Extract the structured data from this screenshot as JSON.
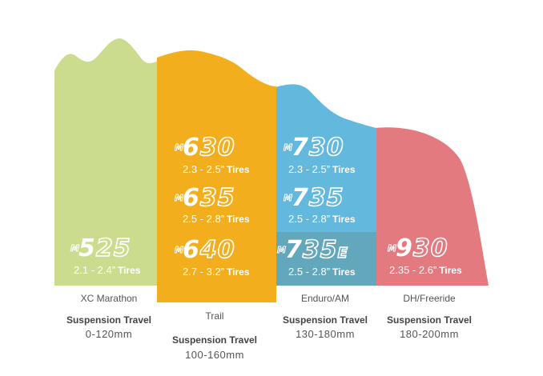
{
  "colors": {
    "xc": "#cbdc8e",
    "trail": "#f2ae1c",
    "enduro": "#62b8dd",
    "enduro_dark": "#63a7bc",
    "dh": "#e27a80"
  },
  "categories": [
    {
      "name": "XC Marathon",
      "travel_label": "Suspension Travel",
      "travel_value": "0-120mm",
      "models": [
        {
          "prefix": "M",
          "first": "5",
          "rest": "25",
          "suffix": "",
          "size": "2.1 - 2.4”",
          "tires": "Tires"
        }
      ]
    },
    {
      "name": "Trail",
      "travel_label": "Suspension Travel",
      "travel_value": "100-160mm",
      "models": [
        {
          "prefix": "M",
          "first": "6",
          "rest": "30",
          "suffix": "",
          "size": "2.3 - 2.5”",
          "tires": "Tires"
        },
        {
          "prefix": "M",
          "first": "6",
          "rest": "35",
          "suffix": "",
          "size": "2.5 - 2.8”",
          "tires": "Tires"
        },
        {
          "prefix": "M",
          "first": "6",
          "rest": "40",
          "suffix": "",
          "size": "2.7 - 3.2”",
          "tires": "Tires"
        }
      ]
    },
    {
      "name": "Enduro/AM",
      "travel_label": "Suspension Travel",
      "travel_value": "130-180mm",
      "models": [
        {
          "prefix": "M",
          "first": "7",
          "rest": "30",
          "suffix": "",
          "size": "2.3 - 2.5”",
          "tires": "Tires"
        },
        {
          "prefix": "M",
          "first": "7",
          "rest": "35",
          "suffix": "",
          "size": "2.5 - 2.8”",
          "tires": "Tires"
        },
        {
          "prefix": "M",
          "first": "7",
          "rest": "35",
          "suffix": "E",
          "size": "2.5 - 2.8”",
          "tires": "Tires"
        }
      ]
    },
    {
      "name": "DH/Freeride",
      "travel_label": "Suspension Travel",
      "travel_value": "180-200mm",
      "models": [
        {
          "prefix": "M",
          "first": "9",
          "rest": "30",
          "suffix": "",
          "size": "2.35 - 2.6”",
          "tires": "Tires"
        }
      ]
    }
  ]
}
